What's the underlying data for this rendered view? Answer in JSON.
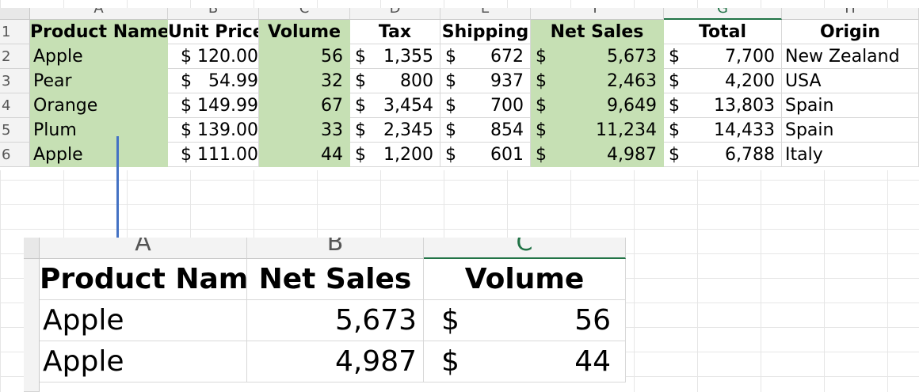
{
  "top_sheet": {
    "columns": [
      "A",
      "B",
      "C",
      "D",
      "E",
      "F",
      "G",
      "H"
    ],
    "rows": [
      "1",
      "2",
      "3",
      "4",
      "5",
      "6"
    ],
    "headers": [
      "Product Name",
      "Unit Price",
      "Volume",
      "Tax",
      "Shipping",
      "Net Sales",
      "Total",
      "Origin"
    ],
    "data": [
      {
        "product": "Apple",
        "unit_price": "$ 120.00",
        "volume": "56",
        "tax": "1,355",
        "shipping": "672",
        "net_sales": "5,673",
        "total": "7,700",
        "origin": "New Zealand"
      },
      {
        "product": "Pear",
        "unit_price": "$   54.99",
        "volume": "32",
        "tax": "800",
        "shipping": "937",
        "net_sales": "2,463",
        "total": "4,200",
        "origin": "USA"
      },
      {
        "product": "Orange",
        "unit_price": "$ 149.99",
        "volume": "67",
        "tax": "3,454",
        "shipping": "700",
        "net_sales": "9,649",
        "total": "13,803",
        "origin": "Spain"
      },
      {
        "product": "Plum",
        "unit_price": "$ 139.00",
        "volume": "33",
        "tax": "2,345",
        "shipping": "854",
        "net_sales": "11,234",
        "total": "14,433",
        "origin": "Spain"
      },
      {
        "product": "Apple",
        "unit_price": "$ 111.00",
        "volume": "44",
        "tax": "1,200",
        "shipping": "601",
        "net_sales": "4,987",
        "total": "6,788",
        "origin": "Italy"
      }
    ],
    "currency_symbol": "$"
  },
  "bottom_sheet": {
    "columns": [
      "A",
      "B",
      "C"
    ],
    "headers": [
      "Product Name",
      "Net Sales",
      "Volume"
    ],
    "data": [
      {
        "product": "Apple",
        "net_sales": "5,673",
        "volume": "56"
      },
      {
        "product": "Apple",
        "net_sales": "4,987",
        "volume": "44"
      }
    ],
    "currency_symbol": "$"
  },
  "colors": {
    "highlight_green": "#c6e0b4",
    "arrow_blue": "#4472c4",
    "selected_col": "#217346"
  }
}
